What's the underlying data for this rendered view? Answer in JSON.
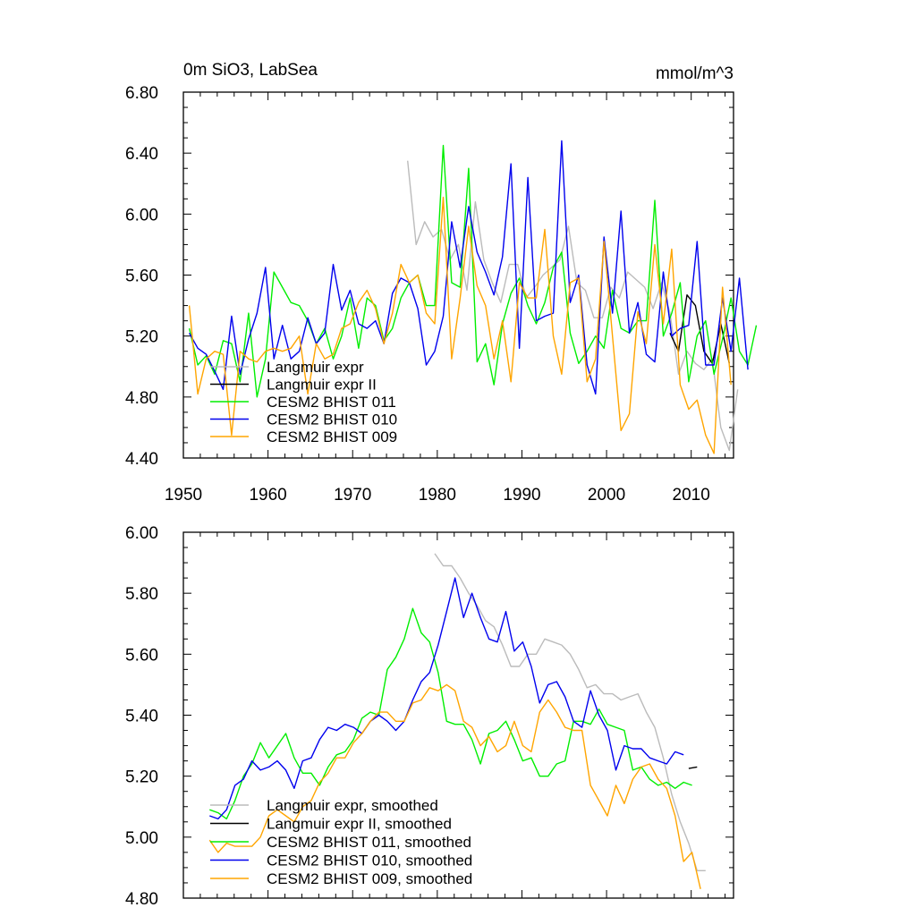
{
  "chart_data": [
    {
      "type": "line",
      "title_left": "0m SiO3, LabSea",
      "title_right": "mmol/m^3",
      "xlim": [
        1950,
        2015
      ],
      "ylim": [
        4.4,
        6.8
      ],
      "xticks": [
        1950,
        1960,
        1970,
        1980,
        1990,
        2000,
        2010
      ],
      "yticks": [
        "4.40",
        "4.80",
        "5.20",
        "5.60",
        "6.00",
        "6.40",
        "6.80"
      ],
      "legend_position": "bottom-left",
      "series": [
        {
          "name": "Langmuir expr",
          "color": "#bbbbbb",
          "x_start": 1976.5,
          "values": [
            6.35,
            5.8,
            5.95,
            5.85,
            5.9,
            5.7,
            5.8,
            5.5,
            6.08,
            5.7,
            5.55,
            5.42,
            5.67,
            5.67,
            5.45,
            5.52,
            5.6,
            5.65,
            5.7,
            5.92,
            5.55,
            5.5,
            5.32,
            5.32,
            5.52,
            5.45,
            5.62,
            5.57,
            5.52,
            5.38,
            5.55,
            5.35,
            4.95,
            5.1,
            5.02,
            4.98,
            5.05,
            4.6,
            4.45,
            4.85
          ]
        },
        {
          "name": "Langmuir expr II",
          "color": "#000000",
          "x_start": 2007.5,
          "values": [
            5.22,
            5.1,
            5.47,
            5.4,
            5.1,
            5.02,
            5.28,
            5.02
          ]
        },
        {
          "name": "CESM2 BHIST 011",
          "color": "#00ee00",
          "x_start": 1950.7,
          "values": [
            5.25,
            5.01,
            5.07,
            4.95,
            5.17,
            5.15,
            4.9,
            5.35,
            4.8,
            5.05,
            5.62,
            5.52,
            5.42,
            5.4,
            5.3,
            5.15,
            5.25,
            5.05,
            5.2,
            5.45,
            5.12,
            5.45,
            5.4,
            5.17,
            5.25,
            5.45,
            5.55,
            5.6,
            5.4,
            5.4,
            6.45,
            5.55,
            5.52,
            6.3,
            5.03,
            5.15,
            4.88,
            5.28,
            5.48,
            5.58,
            5.4,
            5.28,
            5.42,
            5.65,
            5.75,
            5.22,
            5.02,
            5.1,
            5.2,
            5.12,
            5.5,
            5.25,
            5.22,
            5.3,
            5.3,
            6.09,
            5.2,
            5.35,
            5.55,
            4.9,
            5.2,
            5.3,
            4.95,
            5.18,
            5.45,
            5.1,
            5.01,
            5.27
          ]
        },
        {
          "name": "CESM2 BHIST 010",
          "color": "#0000ee",
          "x_start": 1950.7,
          "values": [
            5.22,
            5.12,
            5.08,
            4.97,
            4.85,
            5.33,
            4.95,
            5.18,
            5.35,
            5.65,
            5.05,
            5.27,
            5.05,
            5.1,
            5.32,
            5.15,
            5.22,
            5.67,
            5.37,
            5.5,
            5.28,
            5.25,
            5.3,
            5.15,
            5.48,
            5.58,
            5.55,
            5.38,
            5.01,
            5.1,
            5.33,
            5.95,
            5.65,
            6.05,
            5.75,
            5.62,
            5.47,
            5.72,
            6.33,
            5.12,
            6.24,
            5.3,
            5.33,
            5.35,
            6.48,
            5.42,
            5.6,
            5.01,
            4.82,
            5.85,
            5.35,
            6.02,
            5.22,
            5.42,
            5.08,
            5.03,
            5.62,
            5.2,
            5.25,
            5.27,
            5.82,
            5.01,
            5.01,
            5.45,
            5.1,
            5.58,
            4.98
          ]
        },
        {
          "name": "CESM2 BHIST 009",
          "color": "#ffa500",
          "x_start": 1950.7,
          "values": [
            5.4,
            4.82,
            5.05,
            5.1,
            5.08,
            4.55,
            5.1,
            5.05,
            5.03,
            5.1,
            5.12,
            5.1,
            5.12,
            5.2,
            4.82,
            5.15,
            5.05,
            5.08,
            5.25,
            5.28,
            5.42,
            5.5,
            5.38,
            5.15,
            5.35,
            5.67,
            5.55,
            5.6,
            5.35,
            5.28,
            6.11,
            5.05,
            5.45,
            5.92,
            5.53,
            5.4,
            5.05,
            5.3,
            4.9,
            5.55,
            5.45,
            5.45,
            5.9,
            5.2,
            4.95,
            5.55,
            5.58,
            4.9,
            5.05,
            5.82,
            5.2,
            4.58,
            4.69,
            5.36,
            5.15,
            5.8,
            5.28,
            5.77,
            4.88,
            4.72,
            4.78,
            4.55,
            4.43,
            5.52,
            4.88
          ]
        }
      ]
    },
    {
      "type": "line",
      "xlim": [
        1950,
        2015
      ],
      "ylim": [
        4.8,
        6.0
      ],
      "xticks": [
        1950,
        1960,
        1970,
        1980,
        1990,
        2000,
        2010
      ],
      "yticks": [
        "4.80",
        "5.00",
        "5.20",
        "5.40",
        "5.60",
        "5.80",
        "6.00"
      ],
      "legend_position": "bottom-left",
      "series": [
        {
          "name": "Langmuir expr, smoothed",
          "color": "#bbbbbb",
          "x_start": 1979.7,
          "values": [
            5.93,
            5.89,
            5.89,
            5.85,
            5.8,
            5.76,
            5.71,
            5.69,
            5.63,
            5.56,
            5.56,
            5.6,
            5.6,
            5.65,
            5.64,
            5.63,
            5.6,
            5.55,
            5.49,
            5.5,
            5.47,
            5.47,
            5.45,
            5.46,
            5.47,
            5.41,
            5.36,
            5.26,
            5.14,
            5.05,
            4.98,
            4.89,
            4.89
          ]
        },
        {
          "name": "Langmuir expr II, smoothed",
          "color": "#000000",
          "x_start": 2009.7,
          "values": [
            5.225,
            5.23
          ]
        },
        {
          "name": "CESM2 BHIST 011, smoothed",
          "color": "#00ee00",
          "x_start": 1953.1,
          "values": [
            5.09,
            5.08,
            5.06,
            5.12,
            5.2,
            5.24,
            5.31,
            5.26,
            5.3,
            5.34,
            5.26,
            5.21,
            5.21,
            5.17,
            5.23,
            5.27,
            5.28,
            5.32,
            5.39,
            5.41,
            5.4,
            5.55,
            5.59,
            5.65,
            5.75,
            5.67,
            5.64,
            5.54,
            5.38,
            5.37,
            5.37,
            5.32,
            5.24,
            5.34,
            5.35,
            5.38,
            5.32,
            5.25,
            5.26,
            5.2,
            5.2,
            5.24,
            5.25,
            5.38,
            5.38,
            5.37,
            5.42,
            5.37,
            5.36,
            5.35,
            5.22,
            5.23,
            5.19,
            5.17,
            5.18,
            5.16,
            5.18,
            5.17
          ]
        },
        {
          "name": "CESM2 BHIST 010, smoothed",
          "color": "#0000ee",
          "x_start": 1953.1,
          "values": [
            5.07,
            5.06,
            5.09,
            5.17,
            5.19,
            5.25,
            5.22,
            5.23,
            5.25,
            5.22,
            5.16,
            5.25,
            5.26,
            5.32,
            5.36,
            5.35,
            5.37,
            5.36,
            5.34,
            5.38,
            5.4,
            5.38,
            5.35,
            5.38,
            5.45,
            5.51,
            5.54,
            5.63,
            5.74,
            5.85,
            5.72,
            5.8,
            5.72,
            5.65,
            5.64,
            5.74,
            5.61,
            5.64,
            5.56,
            5.44,
            5.5,
            5.51,
            5.46,
            5.38,
            5.36,
            5.48,
            5.4,
            5.35,
            5.22,
            5.3,
            5.29,
            5.29,
            5.26,
            5.25,
            5.24,
            5.28,
            5.27
          ]
        },
        {
          "name": "CESM2 BHIST 009, smoothed",
          "color": "#ffa500",
          "x_start": 1953.1,
          "values": [
            4.99,
            4.95,
            4.98,
            4.97,
            4.97,
            4.97,
            5.0,
            5.07,
            5.09,
            5.07,
            5.05,
            5.1,
            5.12,
            5.18,
            5.21,
            5.26,
            5.26,
            5.31,
            5.34,
            5.38,
            5.41,
            5.41,
            5.38,
            5.38,
            5.44,
            5.45,
            5.49,
            5.48,
            5.5,
            5.48,
            5.38,
            5.36,
            5.3,
            5.33,
            5.28,
            5.3,
            5.38,
            5.3,
            5.28,
            5.41,
            5.45,
            5.41,
            5.36,
            5.35,
            5.35,
            5.17,
            5.12,
            5.07,
            5.17,
            5.11,
            5.19,
            5.23,
            5.24,
            5.19,
            5.16,
            5.07,
            4.92,
            4.95,
            4.83
          ]
        }
      ]
    }
  ]
}
